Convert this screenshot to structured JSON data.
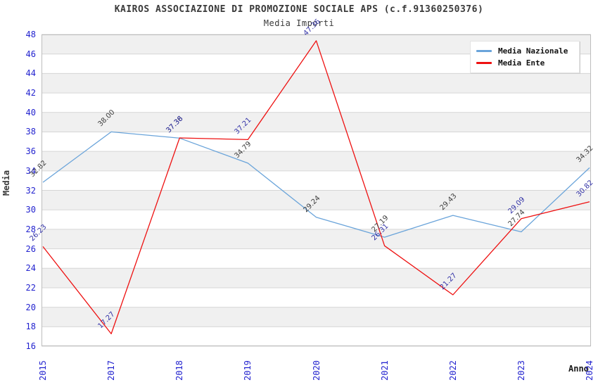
{
  "title": "KAIROS ASSOCIAZIONE DI PROMOZIONE SOCIALE APS (c.f.91360250376)",
  "subtitle": "Media Importi",
  "chart_data": {
    "type": "line",
    "categories": [
      "2015",
      "2017",
      "2018",
      "2019",
      "2020",
      "2021",
      "2022",
      "2023",
      "2024"
    ],
    "series": [
      {
        "name": "Media Nazionale",
        "color": "#6aa4da",
        "label_color": "#404040",
        "values": [
          32.82,
          38.0,
          37.36,
          34.79,
          29.24,
          27.19,
          29.43,
          27.74,
          34.32
        ]
      },
      {
        "name": "Media Ente",
        "color": "#ee1111",
        "label_color": "#3434a8",
        "values": [
          26.23,
          17.27,
          37.38,
          37.21,
          47.36,
          26.31,
          21.27,
          29.09,
          30.82
        ]
      }
    ],
    "xlabel": "Anno",
    "ylabel": "Media",
    "ylim": [
      16,
      48
    ],
    "ytick_step": 2,
    "grid": true,
    "legend_position": "top-right",
    "style": {
      "tick_color": "#2323cf",
      "band_color": "#f0f0f0",
      "grid_color": "#d6d6d6",
      "border_color": "#bdbdbd"
    }
  }
}
